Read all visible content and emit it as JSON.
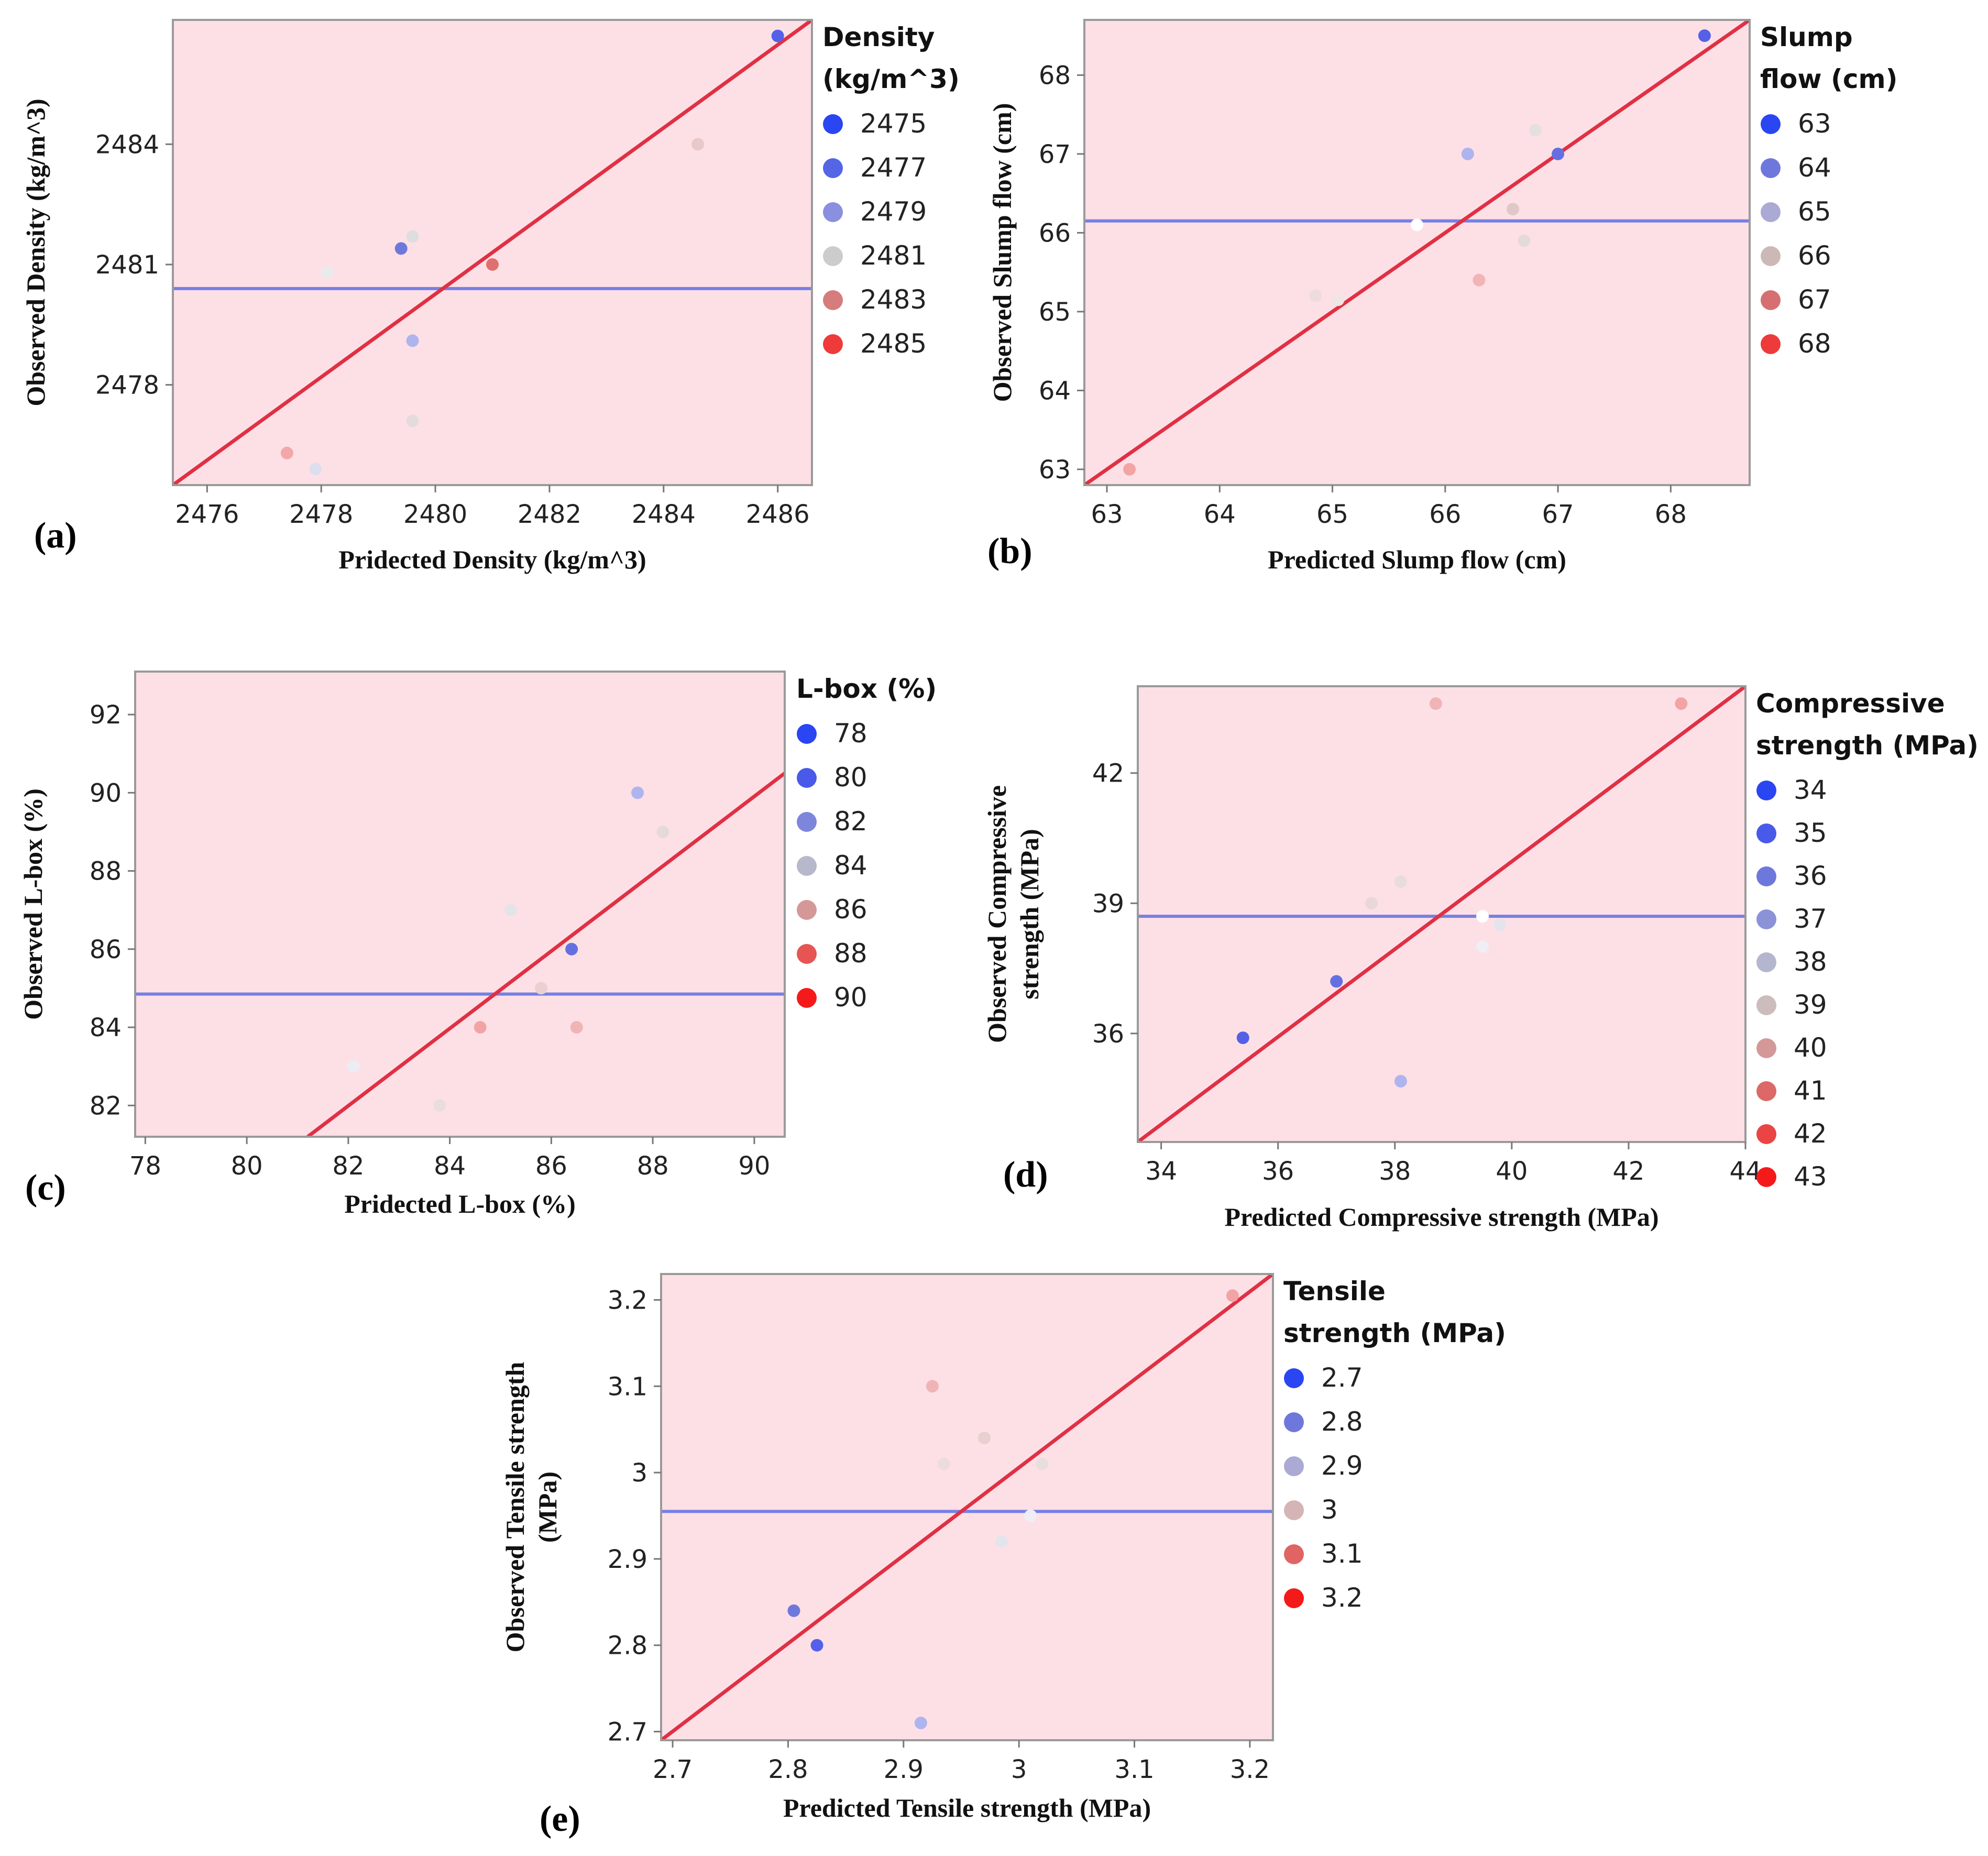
{
  "colors": {
    "plot_background": "#fde0e5",
    "plot_border": "#9a9a9a",
    "fit_line": "#e03044",
    "mean_line": "#7680e4"
  },
  "chart_data": [
    {
      "id": "a",
      "type": "scatter",
      "panel_label": "(a)",
      "xlabel": "Pridected Density (kg/m^3)",
      "ylabel": "Observed Density (kg/m^3)",
      "xlim": [
        2475.4,
        2486.6
      ],
      "ylim": [
        2475.5,
        2487.1
      ],
      "xticks": [
        2476,
        2478,
        2480,
        2482,
        2484,
        2486
      ],
      "yticks": [
        2478,
        2481,
        2484
      ],
      "legend_title": [
        "Density",
        "(kg/m^3)"
      ],
      "legend_values": [
        "2475",
        "2477",
        "2479",
        "2481",
        "2483",
        "2485"
      ],
      "legend_colors": [
        "#2a45f2",
        "#5465e6",
        "#8a8fdf",
        "#cccccc",
        "#d67c7c",
        "#ee3a3a"
      ],
      "mean_y": 2480.4,
      "fit": [
        [
          2475.4,
          2475.5
        ],
        [
          2486.6,
          2487.1
        ]
      ],
      "points": [
        {
          "x": 2486.0,
          "y": 2486.7,
          "color": "#5560e8"
        },
        {
          "x": 2484.6,
          "y": 2484.0,
          "color": "#e8c8c8"
        },
        {
          "x": 2479.4,
          "y": 2481.4,
          "color": "#6e78dc"
        },
        {
          "x": 2479.6,
          "y": 2481.7,
          "color": "#dedede"
        },
        {
          "x": 2481.0,
          "y": 2481.0,
          "color": "#e07070"
        },
        {
          "x": 2478.1,
          "y": 2480.8,
          "color": "#eaeaea"
        },
        {
          "x": 2479.6,
          "y": 2479.1,
          "color": "#aeb4ee"
        },
        {
          "x": 2479.6,
          "y": 2477.1,
          "color": "#e4dcdc"
        },
        {
          "x": 2477.4,
          "y": 2476.3,
          "color": "#f2a8a8"
        },
        {
          "x": 2477.9,
          "y": 2475.9,
          "color": "#dedfee"
        }
      ]
    },
    {
      "id": "b",
      "type": "scatter",
      "panel_label": "(b)",
      "xlabel": "Predicted Slump flow (cm)",
      "ylabel": "Observed Slump flow (cm)",
      "xlim": [
        62.8,
        68.7
      ],
      "ylim": [
        62.8,
        68.7
      ],
      "xticks": [
        63,
        64,
        65,
        66,
        67,
        68
      ],
      "yticks": [
        63,
        64,
        65,
        66,
        67,
        68
      ],
      "legend_title": [
        "Slump",
        "flow (cm)"
      ],
      "legend_values": [
        "63",
        "64",
        "65",
        "66",
        "67",
        "68"
      ],
      "legend_colors": [
        "#2a45f2",
        "#6e78dc",
        "#aaaad4",
        "#cdb8b8",
        "#d67070",
        "#ee3a3a"
      ],
      "mean_y": 66.15,
      "fit": [
        [
          62.8,
          62.8
        ],
        [
          68.7,
          68.7
        ]
      ],
      "points": [
        {
          "x": 68.3,
          "y": 68.5,
          "color": "#5560e8"
        },
        {
          "x": 66.2,
          "y": 67.0,
          "color": "#aeb4ee"
        },
        {
          "x": 67.0,
          "y": 67.0,
          "color": "#6470e2"
        },
        {
          "x": 66.8,
          "y": 67.3,
          "color": "#e4e0e0"
        },
        {
          "x": 66.6,
          "y": 66.3,
          "color": "#e0c8c8"
        },
        {
          "x": 66.7,
          "y": 65.9,
          "color": "#e4dada"
        },
        {
          "x": 65.75,
          "y": 66.1,
          "color": "#ffffff"
        },
        {
          "x": 66.3,
          "y": 65.4,
          "color": "#f2b4b4"
        },
        {
          "x": 64.85,
          "y": 65.2,
          "color": "#eedcdc"
        },
        {
          "x": 65.05,
          "y": 65.15,
          "color": "#f0e4e4"
        },
        {
          "x": 63.2,
          "y": 63.0,
          "color": "#f2a4a4"
        }
      ]
    },
    {
      "id": "c",
      "type": "scatter",
      "panel_label": "(c)",
      "xlabel": "Pridected L-box (%)",
      "ylabel": "Observed L-box (%)",
      "xlim": [
        77.8,
        90.6
      ],
      "ylim": [
        81.2,
        93.1
      ],
      "xticks": [
        78,
        80,
        82,
        84,
        86,
        88,
        90
      ],
      "yticks": [
        82,
        84,
        86,
        88,
        90,
        92
      ],
      "legend_title": [
        "L-box (%)"
      ],
      "legend_values": [
        "78",
        "80",
        "82",
        "84",
        "86",
        "88",
        "90"
      ],
      "legend_colors": [
        "#2a45f2",
        "#4a5ae8",
        "#7e86dc",
        "#b8b8cc",
        "#d49898",
        "#e65454",
        "#f51a1a"
      ],
      "mean_y": 84.85,
      "fit": [
        [
          81.2,
          81.2
        ],
        [
          90.6,
          90.5
        ]
      ],
      "points": [
        {
          "x": 87.7,
          "y": 90.0,
          "color": "#aeb4ee"
        },
        {
          "x": 88.2,
          "y": 89.0,
          "color": "#e4dada"
        },
        {
          "x": 85.2,
          "y": 87.0,
          "color": "#e4e4e8"
        },
        {
          "x": 86.4,
          "y": 86.0,
          "color": "#6470e2"
        },
        {
          "x": 85.8,
          "y": 85.0,
          "color": "#ead0d0"
        },
        {
          "x": 84.6,
          "y": 84.0,
          "color": "#f2a4a4"
        },
        {
          "x": 86.5,
          "y": 84.0,
          "color": "#f0b4b4"
        },
        {
          "x": 82.1,
          "y": 83.0,
          "color": "#ececf4"
        },
        {
          "x": 83.8,
          "y": 82.0,
          "color": "#e8dede"
        }
      ]
    },
    {
      "id": "d",
      "type": "scatter",
      "panel_label": "(d)",
      "xlabel": "Predicted Compressive strength (MPa)",
      "ylabel": "Observed Compressive strength (MPa)",
      "ylabel_lines": [
        "Observed Compressive",
        "strength (MPa)"
      ],
      "xlim": [
        33.6,
        44.0
      ],
      "ylim": [
        33.5,
        44.0
      ],
      "xticks": [
        34,
        36,
        38,
        40,
        42,
        44
      ],
      "yticks": [
        36,
        39,
        42
      ],
      "legend_title": [
        "Compressive",
        "strength (MPa)"
      ],
      "legend_values": [
        "34",
        "35",
        "36",
        "37",
        "38",
        "39",
        "40",
        "41",
        "42",
        "43"
      ],
      "legend_colors": [
        "#2a45f2",
        "#4a5ae8",
        "#6e78dc",
        "#8c92d8",
        "#b4b6d0",
        "#ccbcbc",
        "#d49898",
        "#dc6868",
        "#ea4444",
        "#f51a1a"
      ],
      "mean_y": 38.7,
      "fit": [
        [
          33.6,
          33.5
        ],
        [
          44.0,
          44.0
        ]
      ],
      "points": [
        {
          "x": 38.7,
          "y": 43.6,
          "color": "#f0b4b4"
        },
        {
          "x": 42.9,
          "y": 43.6,
          "color": "#f2a4a4"
        },
        {
          "x": 38.1,
          "y": 39.5,
          "color": "#e8dcdc"
        },
        {
          "x": 37.6,
          "y": 39.0,
          "color": "#ead8d8"
        },
        {
          "x": 39.5,
          "y": 38.7,
          "color": "#ffffff"
        },
        {
          "x": 39.8,
          "y": 38.5,
          "color": "#e4e4ec"
        },
        {
          "x": 39.5,
          "y": 38.0,
          "color": "#eeeef4"
        },
        {
          "x": 37.0,
          "y": 37.2,
          "color": "#6470e2"
        },
        {
          "x": 35.4,
          "y": 35.9,
          "color": "#5560e8"
        },
        {
          "x": 38.1,
          "y": 34.9,
          "color": "#aeb4ee"
        }
      ]
    },
    {
      "id": "e",
      "type": "scatter",
      "panel_label": "(e)",
      "xlabel": "Predicted Tensile strength (MPa)",
      "ylabel": "Observed Tensile strength (MPa)",
      "ylabel_lines": [
        "Observed Tensile strength",
        "(MPa)"
      ],
      "xlim": [
        2.69,
        3.22
      ],
      "ylim": [
        2.69,
        3.23
      ],
      "xticks": [
        "2.7",
        "2.8",
        "2.9",
        "3",
        "3.1",
        "3.2"
      ],
      "yticks": [
        "2.7",
        "2.8",
        "2.9",
        "3",
        "3.1",
        "3.2"
      ],
      "legend_title": [
        "Tensile",
        "strength (MPa)"
      ],
      "legend_values": [
        "2.7",
        "2.8",
        "2.9",
        "3",
        "3.1",
        "3.2"
      ],
      "legend_colors": [
        "#2a45f2",
        "#6e78dc",
        "#aaaad4",
        "#d4b4b4",
        "#e06464",
        "#f51a1a"
      ],
      "mean_y": 2.955,
      "fit": [
        [
          2.69,
          2.69
        ],
        [
          3.22,
          3.23
        ]
      ],
      "points": [
        {
          "x": 3.185,
          "y": 3.205,
          "color": "#f2a4a4"
        },
        {
          "x": 2.925,
          "y": 3.1,
          "color": "#f0b4b4"
        },
        {
          "x": 2.97,
          "y": 3.04,
          "color": "#e8d0d0"
        },
        {
          "x": 2.935,
          "y": 3.01,
          "color": "#ecdcdc"
        },
        {
          "x": 3.02,
          "y": 3.01,
          "color": "#e8dede"
        },
        {
          "x": 3.01,
          "y": 2.95,
          "color": "#eeeef4"
        },
        {
          "x": 2.985,
          "y": 2.92,
          "color": "#e4e4ec"
        },
        {
          "x": 2.805,
          "y": 2.84,
          "color": "#6e78dc"
        },
        {
          "x": 2.825,
          "y": 2.8,
          "color": "#5560e8"
        },
        {
          "x": 2.915,
          "y": 2.71,
          "color": "#aeb4ee"
        }
      ]
    }
  ]
}
